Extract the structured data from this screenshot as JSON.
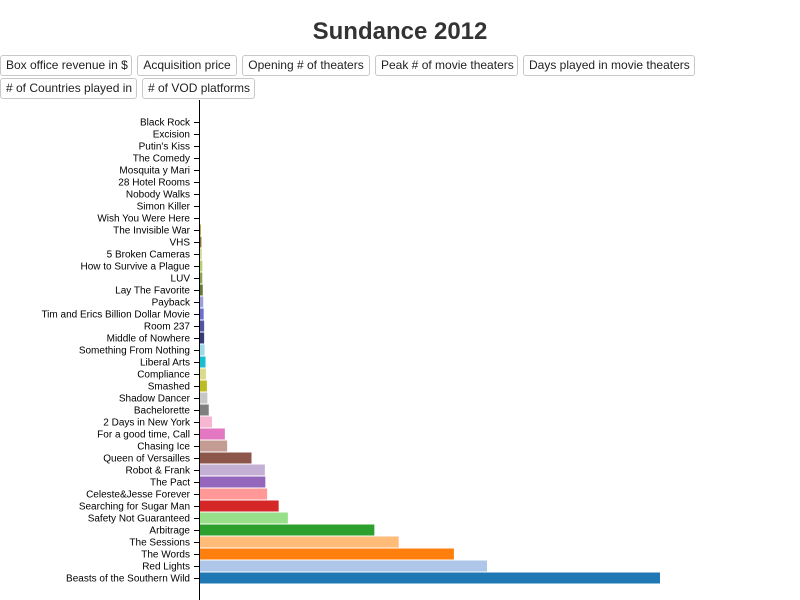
{
  "title": "Sundance 2012",
  "buttons": [
    "Box office revenue in $",
    "Acquisition price",
    "Opening # of theaters",
    "Peak # of movie theaters",
    "Days played in movie theaters",
    "# of Countries played in",
    "# of VOD platforms"
  ],
  "chart_data": {
    "type": "bar",
    "orientation": "horizontal",
    "title": "Sundance 2012",
    "selected_metric": "Box office revenue in $",
    "categories": [
      "Black Rock",
      "Excision",
      "Putin's Kiss",
      "The Comedy",
      "Mosquita y Mari",
      "28 Hotel Rooms",
      "Nobody Walks",
      "Simon Killer",
      "Wish You Were Here",
      "The Invisible War",
      "VHS",
      "5 Broken Cameras",
      "How to Survive a Plague",
      "LUV",
      "Lay The Favorite",
      "Payback",
      "Tim and Erics Billion Dollar Movie",
      "Room 237",
      "Middle of Nowhere",
      "Something From Nothing",
      "Liberal Arts",
      "Compliance",
      "Smashed",
      "Shadow Dancer",
      "Bachelorette",
      "2 Days in New York",
      "For a good time, Call",
      "Chasing Ice",
      "Queen of Versailles",
      "Robot & Frank",
      "The Pact",
      "Celeste&Jesse Forever",
      "Searching for Sugar Man",
      "Safety Not Guaranteed",
      "Arbitrage",
      "The Sessions",
      "The Words",
      "Red Lights",
      "Beasts of the Southern Wild"
    ],
    "values": [
      0.0,
      0.0,
      0.0,
      0.0,
      0.0,
      0.0,
      0.0,
      0.0,
      0.0,
      0.2,
      0.3,
      0.4,
      0.5,
      0.5,
      0.6,
      0.7,
      0.8,
      0.9,
      0.9,
      1.0,
      1.2,
      1.3,
      1.5,
      1.6,
      1.9,
      2.6,
      5.4,
      5.9,
      11.2,
      14.1,
      14.2,
      14.6,
      17.1,
      19.1,
      37.9,
      43.2,
      55.2,
      62.4,
      100
    ],
    "xlim": [
      0,
      100
    ],
    "colors": [
      "#9edae5",
      "#17becf",
      "#dbdb8d",
      "#bcbd22",
      "#c7c7c7",
      "#7f7f7f",
      "#f7b6d2",
      "#e377c2",
      "#c49c94",
      "#8c564b",
      "#c5b0d5",
      "#9467bd",
      "#ff9896",
      "#d62728",
      "#98df8a",
      "#2ca02c",
      "#ffbb78",
      "#ff7f0e",
      "#aec7e8",
      "#1f77b4",
      "#9c9ede",
      "#6b6ecf",
      "#5254a3",
      "#393b79",
      "#9edae5",
      "#17becf",
      "#dbdb8d",
      "#bcbd22",
      "#c7c7c7",
      "#7f7f7f",
      "#f7b6d2",
      "#e377c2",
      "#c49c94",
      "#8c564b",
      "#c5b0d5",
      "#9467bd",
      "#ff9896",
      "#d62728",
      "#98df8a"
    ],
    "bar_colors_bottom_up": [
      "#1f77b4",
      "#aec7e8",
      "#ff7f0e",
      "#ffbb78",
      "#2ca02c",
      "#98df8a",
      "#d62728",
      "#ff9896",
      "#9467bd",
      "#c5b0d5",
      "#8c564b",
      "#c49c94",
      "#e377c2",
      "#f7b6d2",
      "#7f7f7f",
      "#c7c7c7",
      "#bcbd22",
      "#dbdb8d",
      "#17becf",
      "#9edae5",
      "#393b79",
      "#5254a3",
      "#6b6ecf",
      "#9c9ede",
      "#637939",
      "#8ca252",
      "#b5cf6b",
      "#cedb9c",
      "#8c6d31",
      "#bd9e39",
      "#e7ba52",
      "#e7cb94",
      "#843c39",
      "#ad494a",
      "#d6616b",
      "#e7969c",
      "#7b4173",
      "#a55194",
      "#ce6dbd"
    ]
  }
}
